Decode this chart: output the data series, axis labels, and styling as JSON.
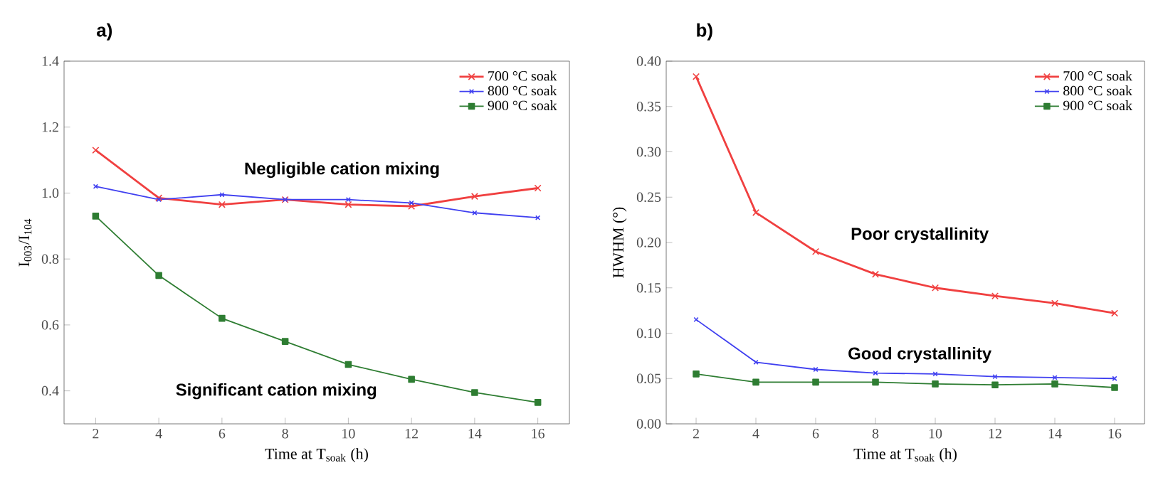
{
  "chart_data": [
    {
      "type": "line",
      "title": "a)",
      "xlabel": "Time at T$_{soak}$ (h)",
      "ylabel": "I$_{003}$/I$_{104}$",
      "x": [
        2,
        4,
        6,
        8,
        10,
        12,
        14,
        16
      ],
      "series": [
        {
          "name": "700 °C soak",
          "color": "#f04040",
          "marker": "cross",
          "values": [
            1.13,
            0.985,
            0.965,
            0.98,
            0.965,
            0.96,
            0.99,
            1.015
          ]
        },
        {
          "name": "800 °C soak",
          "color": "#4040f0",
          "marker": "cross",
          "values": [
            1.02,
            0.98,
            0.995,
            0.98,
            0.98,
            0.97,
            0.94,
            0.925
          ]
        },
        {
          "name": "900 °C soak",
          "color": "#2e7d32",
          "marker": "square",
          "values": [
            0.93,
            0.75,
            0.62,
            0.55,
            0.48,
            0.435,
            0.395,
            0.365
          ]
        }
      ],
      "xlim": [
        1,
        17
      ],
      "xticks": [
        2,
        4,
        6,
        8,
        10,
        12,
        14,
        16
      ],
      "ylim": [
        0.3,
        1.4
      ],
      "yticks": [
        {
          "value": 0.4,
          "label": "0.4"
        },
        {
          "value": 0.6,
          "label": "0.6"
        },
        {
          "value": 0.8,
          "label": "0.8"
        },
        {
          "value": 1.0,
          "label": "1.0"
        },
        {
          "value": 1.2,
          "label": "1.2"
        },
        {
          "value": 1.4,
          "label": "1.4"
        }
      ],
      "legend": "top right",
      "grid": false,
      "annotations": [
        "Negligible cation mixing",
        "Significant cation mixing"
      ]
    },
    {
      "type": "line",
      "title": "b)",
      "xlabel": "Time at T$_{soak}$ (h)",
      "ylabel": "HWHM (°)",
      "x": [
        2,
        4,
        6,
        8,
        10,
        12,
        14,
        16
      ],
      "series": [
        {
          "name": "700 °C soak",
          "color": "#f04040",
          "marker": "cross",
          "values": [
            0.383,
            0.233,
            0.19,
            0.165,
            0.15,
            0.141,
            0.133,
            0.122
          ]
        },
        {
          "name": "800 °C soak",
          "color": "#4040f0",
          "marker": "cross",
          "values": [
            0.115,
            0.068,
            0.06,
            0.056,
            0.055,
            0.052,
            0.051,
            0.05
          ]
        },
        {
          "name": "900 °C soak",
          "color": "#2e7d32",
          "marker": "square",
          "values": [
            0.055,
            0.046,
            0.046,
            0.046,
            0.044,
            0.043,
            0.044,
            0.04
          ]
        }
      ],
      "xlim": [
        1,
        17
      ],
      "xticks": [
        2,
        4,
        6,
        8,
        10,
        12,
        14,
        16
      ],
      "ylim": [
        0,
        0.4
      ],
      "yticks": [
        {
          "value": 0,
          "label": "0.00"
        },
        {
          "value": 0.05,
          "label": "0.05"
        },
        {
          "value": 0.1,
          "label": "0.10"
        },
        {
          "value": 0.15,
          "label": "0.15"
        },
        {
          "value": 0.2,
          "label": "0.20"
        },
        {
          "value": 0.25,
          "label": "0.25"
        },
        {
          "value": 0.3,
          "label": "0.30"
        },
        {
          "value": 0.35,
          "label": "0.35"
        },
        {
          "value": 0.4,
          "label": "0.40"
        }
      ],
      "legend": "top right",
      "grid": false,
      "annotations": [
        "Poor crystallinity",
        "Good crystallinity"
      ]
    }
  ]
}
